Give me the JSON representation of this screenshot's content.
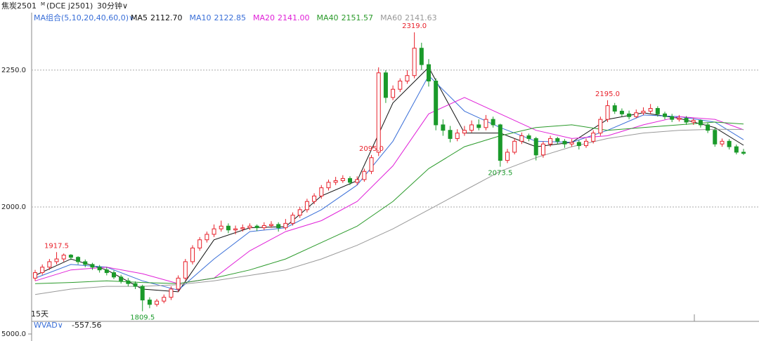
{
  "header": {
    "symbol": "焦炭2501",
    "sup": "M",
    "code": "(DCE j2501)",
    "period": "30分钟∨",
    "ma_group": "MA组合(5,10,20,40,60,0)∨"
  },
  "chart_data": {
    "type": "candlestick",
    "ylim": [
      1791,
      2355
    ],
    "yticks": [
      {
        "value": 2000,
        "label": "2000.0"
      },
      {
        "value": 2250,
        "label": "2250.0"
      }
    ],
    "grid": true,
    "up_color": "#e8202a",
    "down_color": "#1a9a2a",
    "candles": [
      [
        1870,
        1885,
        1865,
        1880
      ],
      [
        1880,
        1895,
        1876,
        1890
      ],
      [
        1890,
        1905,
        1885,
        1900
      ],
      [
        1900,
        1917.5,
        1895,
        1905
      ],
      [
        1905,
        1915,
        1900,
        1912
      ],
      [
        1912,
        1914,
        1903,
        1908
      ],
      [
        1908,
        1910,
        1895,
        1900
      ],
      [
        1900,
        1904,
        1890,
        1895
      ],
      [
        1895,
        1898,
        1885,
        1890
      ],
      [
        1890,
        1894,
        1880,
        1885
      ],
      [
        1885,
        1890,
        1875,
        1880
      ],
      [
        1880,
        1884,
        1868,
        1872
      ],
      [
        1872,
        1876,
        1860,
        1865
      ],
      [
        1865,
        1870,
        1855,
        1860
      ],
      [
        1860,
        1864,
        1850,
        1855
      ],
      [
        1855,
        1858,
        1809.5,
        1830
      ],
      [
        1830,
        1835,
        1815,
        1822
      ],
      [
        1822,
        1832,
        1818,
        1828
      ],
      [
        1828,
        1840,
        1824,
        1835
      ],
      [
        1835,
        1855,
        1830,
        1850
      ],
      [
        1850,
        1875,
        1845,
        1870
      ],
      [
        1870,
        1905,
        1866,
        1900
      ],
      [
        1900,
        1930,
        1895,
        1925
      ],
      [
        1925,
        1945,
        1920,
        1940
      ],
      [
        1940,
        1955,
        1935,
        1950
      ],
      [
        1950,
        1968,
        1945,
        1960
      ],
      [
        1960,
        1975,
        1955,
        1965
      ],
      [
        1965,
        1970,
        1952,
        1958
      ],
      [
        1958,
        1966,
        1950,
        1960
      ],
      [
        1960,
        1968,
        1955,
        1962
      ],
      [
        1962,
        1970,
        1958,
        1965
      ],
      [
        1965,
        1968,
        1956,
        1962
      ],
      [
        1962,
        1972,
        1958,
        1966
      ],
      [
        1966,
        1974,
        1962,
        1968
      ],
      [
        1968,
        1972,
        1955,
        1962
      ],
      [
        1962,
        1978,
        1958,
        1970
      ],
      [
        1970,
        1990,
        1966,
        1985
      ],
      [
        1985,
        2000,
        1980,
        1995
      ],
      [
        1995,
        2015,
        1990,
        2010
      ],
      [
        2010,
        2025,
        2005,
        2020
      ],
      [
        2020,
        2040,
        2015,
        2035
      ],
      [
        2035,
        2050,
        2030,
        2045
      ],
      [
        2045,
        2055,
        2040,
        2048
      ],
      [
        2048,
        2058,
        2044,
        2052
      ],
      [
        2052,
        2056,
        2040,
        2045
      ],
      [
        2045,
        2056,
        2040,
        2050
      ],
      [
        2050,
        2070,
        2046,
        2065
      ],
      [
        2065,
        2095,
        2060,
        2090
      ],
      [
        2100,
        2255,
        2093,
        2245
      ],
      [
        2245,
        2250,
        2190,
        2200
      ],
      [
        2200,
        2222,
        2195,
        2215
      ],
      [
        2215,
        2235,
        2210,
        2230
      ],
      [
        2230,
        2250,
        2225,
        2240
      ],
      [
        2240,
        2319,
        2235,
        2290
      ],
      [
        2290,
        2300,
        2250,
        2260
      ],
      [
        2260,
        2270,
        2220,
        2230
      ],
      [
        2230,
        2235,
        2140,
        2150
      ],
      [
        2150,
        2160,
        2130,
        2140
      ],
      [
        2140,
        2148,
        2118,
        2125
      ],
      [
        2125,
        2142,
        2120,
        2135
      ],
      [
        2135,
        2148,
        2130,
        2140
      ],
      [
        2140,
        2158,
        2136,
        2150
      ],
      [
        2150,
        2160,
        2140,
        2145
      ],
      [
        2145,
        2168,
        2140,
        2160
      ],
      [
        2160,
        2165,
        2145,
        2150
      ],
      [
        2150,
        2152,
        2073.5,
        2085
      ],
      [
        2085,
        2106,
        2080,
        2100
      ],
      [
        2100,
        2125,
        2096,
        2120
      ],
      [
        2120,
        2136,
        2115,
        2130
      ],
      [
        2130,
        2134,
        2120,
        2125
      ],
      [
        2125,
        2128,
        2085,
        2095
      ],
      [
        2095,
        2120,
        2090,
        2115
      ],
      [
        2115,
        2130,
        2110,
        2125
      ],
      [
        2125,
        2128,
        2114,
        2120
      ],
      [
        2120,
        2124,
        2108,
        2115
      ],
      [
        2115,
        2124,
        2110,
        2118
      ],
      [
        2118,
        2122,
        2105,
        2112
      ],
      [
        2112,
        2125,
        2108,
        2120
      ],
      [
        2120,
        2140,
        2116,
        2135
      ],
      [
        2135,
        2165,
        2130,
        2160
      ],
      [
        2160,
        2195,
        2155,
        2185
      ],
      [
        2185,
        2190,
        2170,
        2175
      ],
      [
        2175,
        2180,
        2165,
        2170
      ],
      [
        2170,
        2176,
        2160,
        2165
      ],
      [
        2165,
        2178,
        2162,
        2172
      ],
      [
        2172,
        2182,
        2168,
        2175
      ],
      [
        2175,
        2188,
        2170,
        2180
      ],
      [
        2180,
        2184,
        2165,
        2170
      ],
      [
        2170,
        2174,
        2160,
        2165
      ],
      [
        2165,
        2170,
        2155,
        2160
      ],
      [
        2160,
        2168,
        2156,
        2162
      ],
      [
        2162,
        2166,
        2150,
        2155
      ],
      [
        2155,
        2162,
        2150,
        2158
      ],
      [
        2158,
        2160,
        2145,
        2150
      ],
      [
        2150,
        2154,
        2135,
        2140
      ],
      [
        2140,
        2145,
        2110,
        2115
      ],
      [
        2115,
        2125,
        2110,
        2120
      ],
      [
        2120,
        2124,
        2105,
        2110
      ],
      [
        2110,
        2114,
        2096,
        2100
      ],
      [
        2100,
        2106,
        2095,
        2098
      ]
    ],
    "ma_x": [
      0,
      5,
      10,
      15,
      20,
      25,
      30,
      35,
      40,
      45,
      50,
      55,
      60,
      65,
      70,
      75,
      80,
      85,
      90,
      95,
      99
    ],
    "series": [
      {
        "name": "MA5",
        "legend_value": "2112.70",
        "color": "#111111",
        "values": [
          1875,
          1905,
          1885,
          1850,
          1845,
          1940,
          1962,
          1964,
          2020,
          2048,
          2190,
          2255,
          2135,
          2135,
          2110,
          2118,
          2160,
          2172,
          2162,
          2145,
          2112.7
        ]
      },
      {
        "name": "MA10",
        "legend_value": "2122.85",
        "color": "#3a6fd8",
        "values": [
          1870,
          1895,
          1890,
          1865,
          1848,
          1905,
          1955,
          1962,
          1995,
          2040,
          2120,
          2240,
          2175,
          2145,
          2120,
          2118,
          2140,
          2168,
          2165,
          2155,
          2122.85
        ]
      },
      {
        "name": "MA20",
        "legend_value": "2141.00",
        "color": "#e020d8",
        "values": [
          1865,
          1885,
          1890,
          1878,
          1860,
          1870,
          1920,
          1955,
          1975,
          2010,
          2075,
          2170,
          2200,
          2170,
          2140,
          2125,
          2130,
          2150,
          2165,
          2160,
          2141
        ]
      },
      {
        "name": "MA40",
        "legend_value": "2151.57",
        "color": "#2a9a2a",
        "values": [
          1860,
          1862,
          1865,
          1862,
          1860,
          1870,
          1885,
          1905,
          1935,
          1965,
          2010,
          2070,
          2110,
          2130,
          2145,
          2150,
          2140,
          2145,
          2150,
          2155,
          2151.57
        ]
      },
      {
        "name": "MA60",
        "legend_value": "2141.63",
        "color": "#999999",
        "values": [
          1840,
          1850,
          1855,
          1855,
          1858,
          1865,
          1875,
          1885,
          1905,
          1930,
          1960,
          1995,
          2030,
          2065,
          2090,
          2110,
          2125,
          2135,
          2140,
          2142,
          2141.63
        ]
      }
    ],
    "annotations": [
      {
        "label": "1917.5",
        "value": 1917.5
      },
      {
        "label": "1809.5",
        "value": 1809.5
      },
      {
        "label": "2319.0",
        "value": 2319
      },
      {
        "label": "2073.5",
        "value": 2073.5
      },
      {
        "label": "2195.0",
        "value": 2195
      },
      {
        "label": "2095.0",
        "value": 2095
      }
    ],
    "span_label": "15天"
  },
  "indicator": {
    "name": "WVAD∨",
    "value": -557.56,
    "yticks": [
      {
        "value": 5000,
        "label": "5000.0"
      }
    ]
  }
}
